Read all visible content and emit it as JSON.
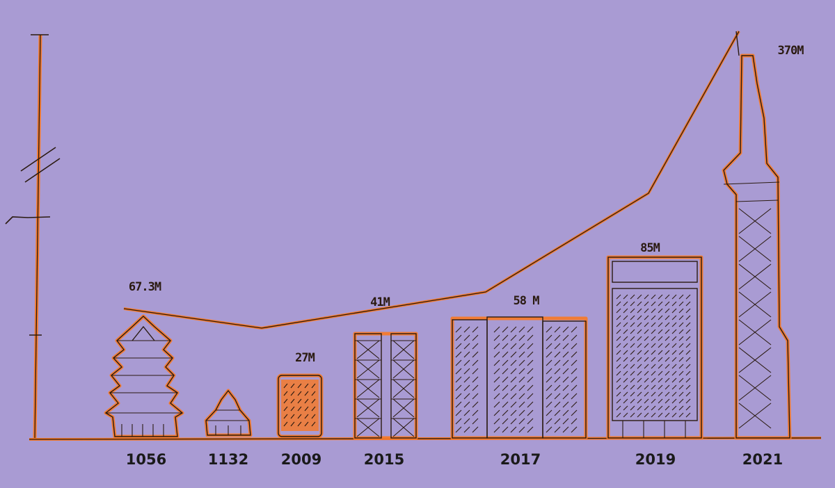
{
  "chart_data": {
    "type": "bar",
    "categories": [
      "1056",
      "1132",
      "2009",
      "2015",
      "2017",
      "2019",
      "2021"
    ],
    "value_labels": [
      "67.3M",
      "",
      "27M",
      "41M",
      "58 M",
      "85M",
      "370M"
    ],
    "values": [
      67.3,
      15,
      27,
      41,
      58,
      85,
      370
    ],
    "trend_line": true,
    "y_axis": {
      "broken": true,
      "tick_labels": false
    },
    "grid": false,
    "legend": "none",
    "colors": {
      "background": "#a99bd3",
      "accent": "#f47a2c",
      "ink": "#2a1a10"
    }
  }
}
